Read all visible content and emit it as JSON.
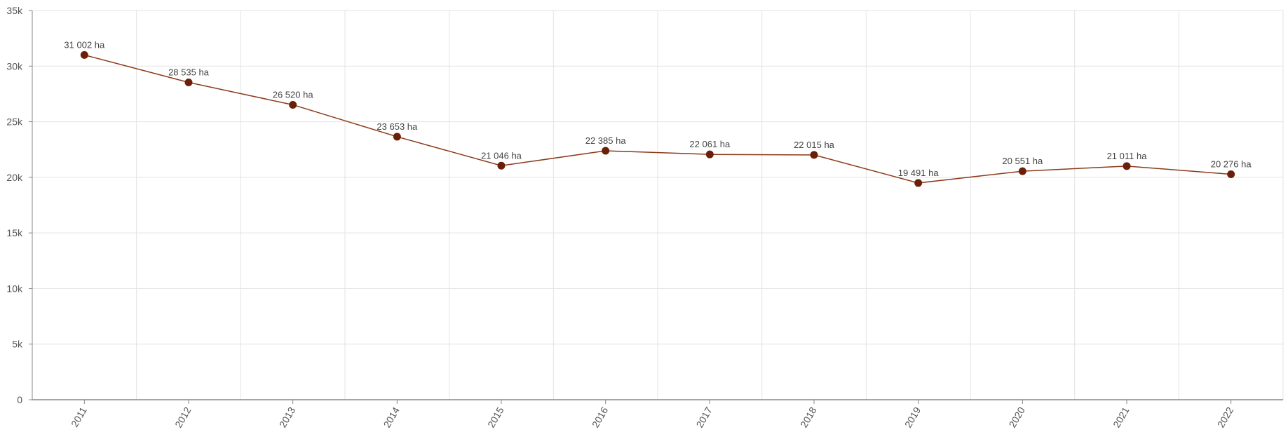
{
  "chart_data": {
    "type": "line",
    "title": "",
    "xlabel": "",
    "ylabel": "",
    "categories": [
      "2011",
      "2012",
      "2013",
      "2014",
      "2015",
      "2016",
      "2017",
      "2018",
      "2019",
      "2020",
      "2021",
      "2022"
    ],
    "series": [
      {
        "values": [
          31002,
          28535,
          26520,
          23653,
          21046,
          22385,
          22061,
          22015,
          19491,
          20551,
          21011,
          20276
        ],
        "data_labels": [
          "31 002 ha",
          "28 535 ha",
          "26 520 ha",
          "23 653 ha",
          "21 046 ha",
          "22 385 ha",
          "22 061 ha",
          "22 015 ha",
          "19 491 ha",
          "20 551 ha",
          "21 011 ha",
          "20 276 ha"
        ]
      }
    ],
    "ylim": [
      0,
      35000
    ],
    "y_ticks": [
      0,
      5000,
      10000,
      15000,
      20000,
      25000,
      30000,
      35000
    ],
    "y_tick_labels": [
      "0",
      "5k",
      "10k",
      "15k",
      "20k",
      "25k",
      "30k",
      "35k"
    ],
    "grid": true,
    "legend": "none",
    "colors": {
      "line": "#8B3A1A",
      "marker": "#6B1F08",
      "grid": "#e3e3e3",
      "axis": "#888888",
      "text": "#555555"
    }
  }
}
